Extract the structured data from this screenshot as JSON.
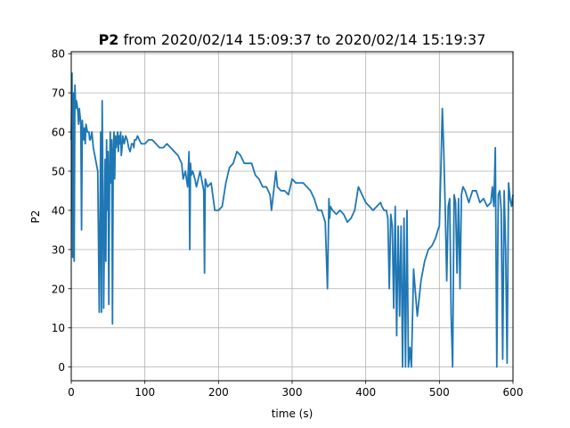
{
  "title": {
    "bold": "P2",
    "rest": " from 2020/02/14 15:09:37 to 2020/02/14 15:19:37"
  },
  "chart_data": {
    "type": "line",
    "xlabel": "time (s)",
    "ylabel": "P2",
    "xlim": [
      0,
      600
    ],
    "ylim": [
      -3.5,
      80.5
    ],
    "xticks": [
      0,
      100,
      200,
      300,
      400,
      500,
      600
    ],
    "yticks": [
      0,
      10,
      20,
      30,
      40,
      50,
      60,
      70,
      80
    ],
    "grid": true,
    "line_color": "#1f77b4",
    "series": [
      {
        "x": [
          0,
          1,
          2,
          3,
          4,
          5,
          6,
          7,
          8,
          9,
          10,
          11,
          12,
          13,
          14,
          15,
          16,
          17,
          18,
          19,
          20,
          22,
          24,
          25,
          26,
          28,
          30,
          32,
          34,
          36,
          38,
          40,
          41,
          42,
          43,
          44,
          45,
          46,
          47,
          48,
          49,
          50,
          51,
          52,
          53,
          54,
          55,
          56,
          57,
          58,
          59,
          60,
          61,
          62,
          63,
          64,
          65,
          66,
          67,
          68,
          69,
          70,
          72,
          74,
          76,
          78,
          80,
          82,
          84,
          85,
          86,
          88,
          90,
          95,
          100,
          105,
          110,
          115,
          120,
          125,
          130,
          135,
          140,
          145,
          150,
          152,
          155,
          158,
          160,
          161,
          162,
          163,
          165,
          168,
          170,
          175,
          178,
          180,
          181,
          182,
          185,
          190,
          195,
          200,
          205,
          210,
          215,
          220,
          225,
          230,
          235,
          240,
          245,
          250,
          255,
          260,
          265,
          270,
          272,
          275,
          278,
          280,
          285,
          290,
          295,
          300,
          305,
          310,
          315,
          320,
          325,
          330,
          335,
          340,
          345,
          348,
          350,
          351,
          352,
          355,
          360,
          365,
          370,
          375,
          380,
          385,
          390,
          395,
          400,
          405,
          410,
          415,
          420,
          422,
          425,
          428,
          430,
          432,
          434,
          436,
          438,
          440,
          442,
          444,
          446,
          448,
          450,
          452,
          454,
          456,
          458,
          460,
          462,
          465,
          470,
          475,
          480,
          485,
          490,
          495,
          498,
          500,
          502,
          504,
          506,
          508,
          510,
          512,
          514,
          516,
          518,
          520,
          522,
          524,
          526,
          528,
          530,
          532,
          535,
          540,
          545,
          550,
          555,
          560,
          565,
          570,
          572,
          574,
          576,
          578,
          580,
          582,
          584,
          586,
          588,
          590,
          592,
          594,
          596,
          598,
          600
        ],
        "y": [
          58,
          75,
          28,
          70,
          27,
          72,
          66,
          68,
          67,
          65,
          62,
          66,
          64,
          62,
          35,
          63,
          60,
          58,
          61,
          57,
          62,
          60,
          60,
          58,
          58,
          60,
          56,
          54,
          52,
          50,
          14,
          60,
          14,
          68,
          47,
          15,
          33,
          53,
          27,
          58,
          40,
          55,
          16,
          48,
          60,
          47,
          58,
          11,
          54,
          60,
          48,
          59,
          56,
          58,
          60,
          55,
          59,
          57,
          60,
          54,
          56,
          59,
          57,
          59,
          58,
          56,
          55,
          57,
          57,
          56,
          58,
          58,
          59,
          57,
          57,
          58,
          58,
          57,
          56,
          56,
          57,
          56,
          55,
          54,
          52,
          48,
          50,
          46,
          55,
          30,
          52,
          49,
          50,
          48,
          46,
          50,
          47,
          45,
          24,
          48,
          46,
          47,
          40,
          40,
          41,
          47,
          51,
          52,
          55,
          54,
          52,
          52,
          52,
          49,
          48,
          46,
          46,
          44,
          40,
          45,
          50,
          46,
          45,
          45,
          44,
          48,
          47,
          47,
          47,
          46,
          45,
          43,
          40,
          40,
          37,
          20,
          43,
          38,
          41,
          40,
          39,
          40,
          39,
          37,
          38,
          40,
          46,
          44,
          42,
          41,
          40,
          41,
          42,
          41,
          40,
          40,
          38,
          20,
          39,
          36,
          15,
          41,
          8,
          36,
          13,
          36,
          0,
          38,
          0,
          40,
          0,
          5,
          0,
          25,
          13,
          22,
          27,
          30,
          31,
          33,
          35,
          36,
          50,
          66,
          55,
          40,
          22,
          41,
          43,
          13,
          0,
          44,
          42,
          24,
          43,
          20,
          44,
          46,
          45,
          42,
          45,
          45,
          42,
          43,
          41,
          42,
          46,
          41,
          56,
          0,
          44,
          45,
          40,
          2,
          45,
          30,
          1,
          47,
          43,
          41,
          44
        ]
      }
    ]
  }
}
